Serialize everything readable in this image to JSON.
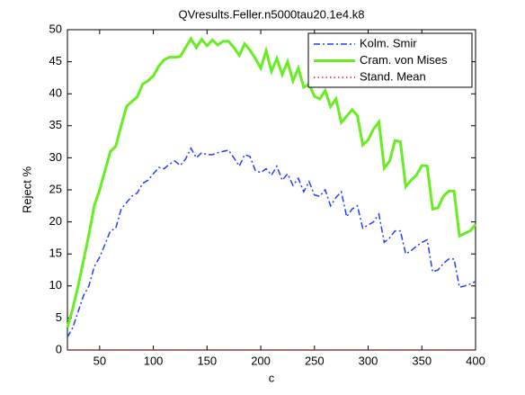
{
  "chart_data": {
    "type": "line",
    "title": "QVresults.Feller.n5000tau20.1e4.k8",
    "xlabel": "c",
    "ylabel": "Reject %",
    "x": [
      20,
      25,
      30,
      35,
      40,
      45,
      50,
      55,
      60,
      65,
      70,
      75,
      80,
      85,
      90,
      95,
      100,
      105,
      110,
      115,
      120,
      125,
      130,
      135,
      140,
      145,
      150,
      155,
      160,
      165,
      170,
      175,
      180,
      185,
      190,
      195,
      200,
      205,
      210,
      215,
      220,
      225,
      230,
      235,
      240,
      245,
      250,
      255,
      260,
      265,
      270,
      275,
      280,
      285,
      290,
      295,
      300,
      305,
      310,
      315,
      320,
      325,
      330,
      335,
      340,
      345,
      350,
      355,
      360,
      365,
      370,
      375,
      380,
      385,
      390,
      395,
      400
    ],
    "series": [
      {
        "name": "Kolm. Smir",
        "color": "#1f3fff",
        "style": "dashdot",
        "values": [
          2,
          3.5,
          6,
          8.5,
          10,
          13,
          14.5,
          16.5,
          18.6,
          19,
          22,
          23,
          24,
          24.5,
          26,
          26.5,
          27.5,
          28.5,
          28.3,
          29,
          29.5,
          28.8,
          29.8,
          31.5,
          30,
          30.8,
          30.5,
          30.5,
          30.8,
          31,
          31.2,
          30,
          28.7,
          30.5,
          30.2,
          28,
          27.7,
          28.3,
          27.3,
          28.7,
          26.5,
          27.5,
          25.7,
          26.8,
          24.7,
          26.3,
          24.2,
          24,
          25,
          22.5,
          23.8,
          24.7,
          20.8,
          22,
          22.5,
          19,
          19.5,
          20,
          21.2,
          16.8,
          17.5,
          18.6,
          18.6,
          15,
          15.5,
          16.2,
          16.8,
          17.2,
          12.2,
          12.5,
          13.5,
          14.2,
          14.2,
          9.8,
          10,
          10.3,
          10.7
        ]
      },
      {
        "name": "Cram. von Mises",
        "color": "#66ee22",
        "style": "solid",
        "values": [
          3.5,
          6.5,
          10,
          14,
          18,
          22.5,
          25,
          28,
          31,
          31.8,
          35,
          38,
          38.8,
          39.5,
          41.5,
          42,
          42.8,
          44.3,
          45.3,
          45.7,
          45.7,
          45.8,
          47.2,
          48.6,
          47.2,
          48.5,
          47.5,
          48.4,
          47.6,
          48.2,
          48.2,
          47.2,
          46,
          47.8,
          46.8,
          45.5,
          44,
          46.7,
          43.5,
          45.5,
          43,
          45,
          42,
          44,
          41,
          41.5,
          39.6,
          39.2,
          40.5,
          38,
          39.2,
          35.5,
          36.5,
          37.5,
          36.6,
          32,
          32.8,
          34.5,
          35.6,
          28.4,
          29.5,
          32.7,
          32.5,
          25.5,
          26.5,
          27.3,
          28.8,
          28.7,
          22,
          22.2,
          24,
          24.8,
          24.8,
          17.8,
          18.2,
          18.6,
          19.6
        ]
      },
      {
        "name": "Stand. Mean",
        "color": "#e02020",
        "style": "dotted",
        "values": [
          0,
          0,
          0,
          0,
          0,
          0,
          0,
          0,
          0,
          0,
          0,
          0,
          0,
          0,
          0,
          0,
          0,
          0,
          0,
          0,
          0,
          0,
          0,
          0,
          0,
          0,
          0,
          0,
          0,
          0,
          0,
          0,
          0,
          0,
          0,
          0,
          0,
          0,
          0,
          0,
          0,
          0,
          0,
          0,
          0,
          0,
          0,
          0,
          0,
          0,
          0,
          0,
          0,
          0,
          0,
          0,
          0,
          0,
          0,
          0,
          0,
          0,
          0,
          0,
          0,
          0,
          0,
          0,
          0,
          0,
          0,
          0,
          0,
          0,
          0,
          0,
          0
        ]
      }
    ],
    "xlim": [
      20,
      400
    ],
    "xticks": [
      50,
      100,
      150,
      200,
      250,
      300,
      350,
      400
    ],
    "ylim": [
      0,
      50
    ],
    "yticks": [
      0,
      5,
      10,
      15,
      20,
      25,
      30,
      35,
      40,
      45,
      50
    ],
    "legend": "upper right"
  }
}
